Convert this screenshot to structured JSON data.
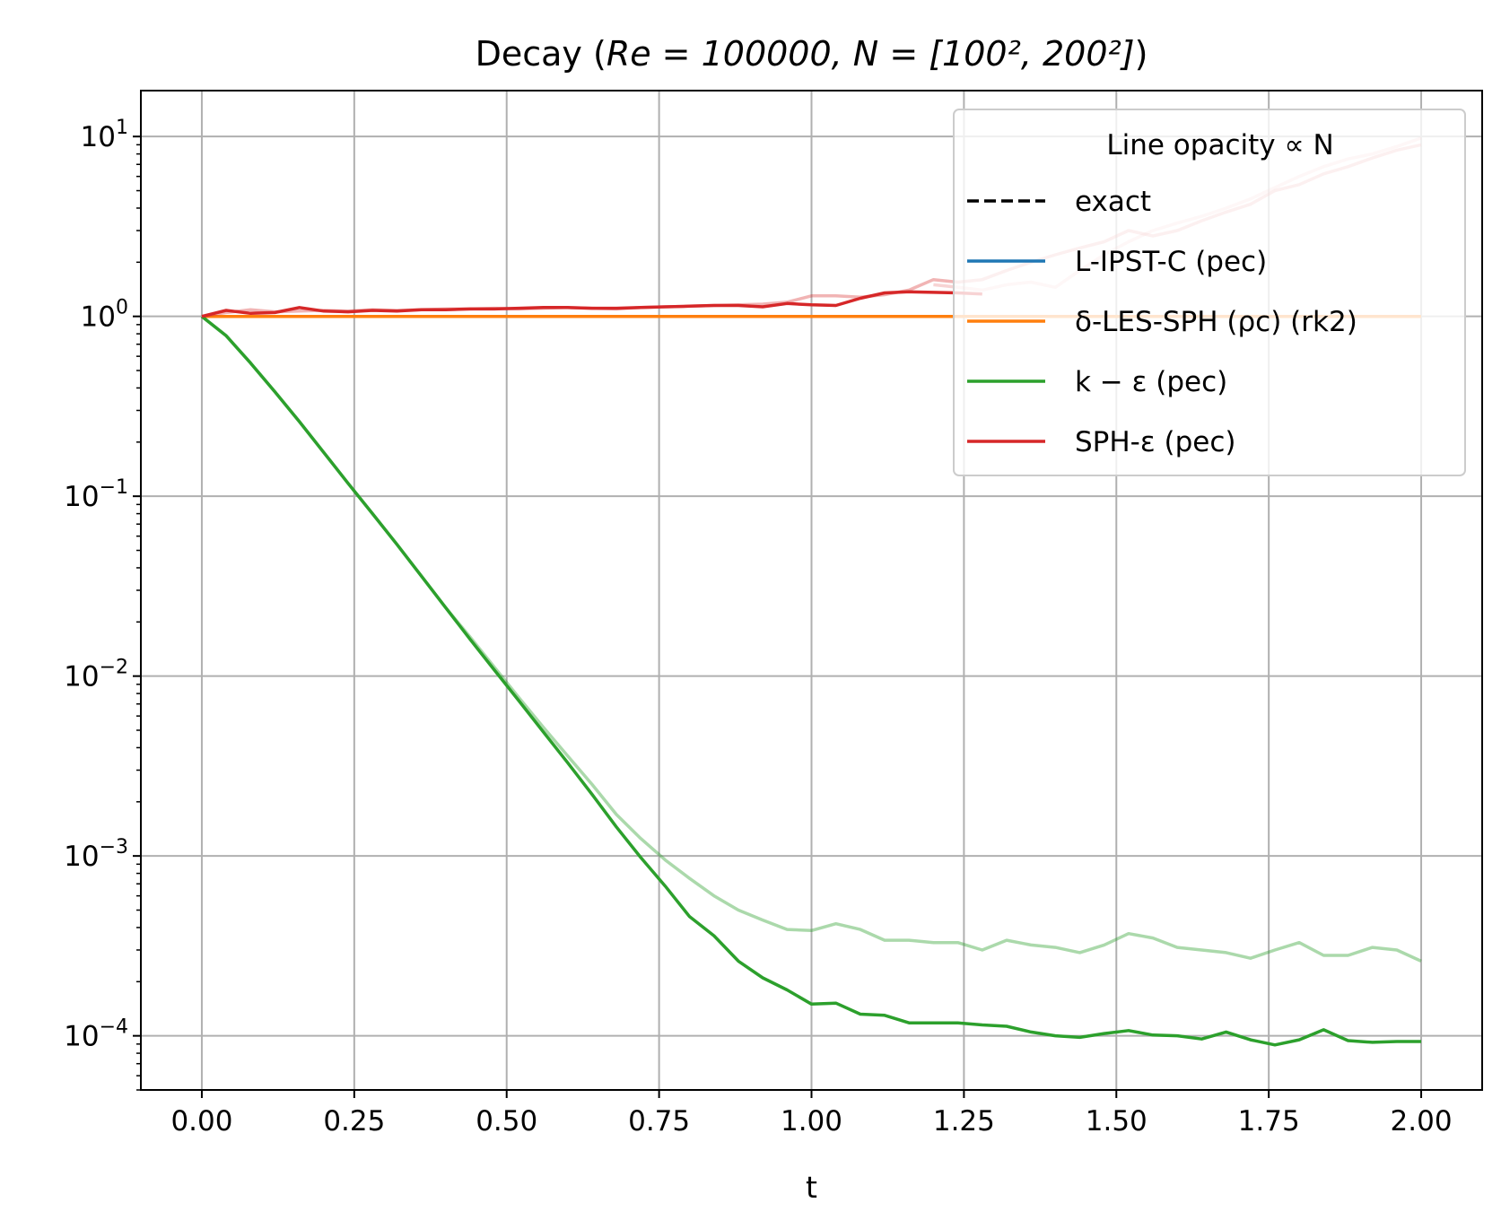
{
  "chart_data": {
    "type": "line",
    "title": {
      "main": "Decay",
      "params": "Re = 100000, N = [100², 200²]"
    },
    "xlabel": "t",
    "ylabel": "",
    "xlim": [
      -0.1,
      2.1
    ],
    "ylim": [
      5e-05,
      18
    ],
    "yscale": "log",
    "grid": true,
    "x_ticks": [
      0.0,
      0.25,
      0.5,
      0.75,
      1.0,
      1.25,
      1.5,
      1.75,
      2.0
    ],
    "x_tick_labels": [
      "0.00",
      "0.25",
      "0.50",
      "0.75",
      "1.00",
      "1.25",
      "1.50",
      "1.75",
      "2.00"
    ],
    "y_ticks": [
      {
        "value": 10,
        "base": "10",
        "exp": "1"
      },
      {
        "value": 1,
        "base": "10",
        "exp": "0"
      },
      {
        "value": 0.1,
        "base": "10",
        "exp": "−1"
      },
      {
        "value": 0.01,
        "base": "10",
        "exp": "−2"
      },
      {
        "value": 0.001,
        "base": "10",
        "exp": "−3"
      },
      {
        "value": 0.0001,
        "base": "10",
        "exp": "−4"
      }
    ],
    "legend": {
      "location": "upper right",
      "title": "Line opacity ∝ N",
      "entries": [
        {
          "label": "exact",
          "color": "#000000",
          "dash": true
        },
        {
          "label": "L-IPST-C (pec)",
          "color": "#1f77b4",
          "dash": false
        },
        {
          "label": "δ-LES-SPH (ρc) (rk2)",
          "color": "#ff7f0e",
          "dash": false
        },
        {
          "label": "k − ε (pec)",
          "color": "#2ca02c",
          "dash": false
        },
        {
          "label": "SPH-ε (pec)",
          "color": "#d62728",
          "dash": false
        }
      ]
    },
    "series": [
      {
        "name": "exact",
        "color": "#000000",
        "dash": true,
        "opacity": 1.0,
        "x": [
          0.0,
          2.0
        ],
        "y": [
          1.0,
          1.0
        ]
      },
      {
        "name": "L-IPST-C (pec)",
        "color": "#1f77b4",
        "opacity": 1.0,
        "x": [
          0.0,
          0.5,
          1.0,
          1.5,
          2.0
        ],
        "y": [
          1.0,
          1.0,
          0.999,
          0.999,
          0.998
        ]
      },
      {
        "name": "δ-LES-SPH (ρc) (rk2)",
        "color": "#ff7f0e",
        "opacity": 0.5,
        "resolution": "100²",
        "x": [
          0.0,
          0.5,
          1.0,
          1.5,
          2.0
        ],
        "y": [
          1.0,
          1.0,
          1.0,
          1.0,
          1.0
        ]
      },
      {
        "name": "δ-LES-SPH (ρc) (rk2)",
        "color": "#ff7f0e",
        "opacity": 1.0,
        "resolution": "200²",
        "x": [
          0.0,
          0.5,
          1.0,
          1.5,
          2.0
        ],
        "y": [
          1.0,
          1.0,
          1.0,
          1.0,
          1.0
        ]
      },
      {
        "name": "k − ε (pec)",
        "color": "#2ca02c",
        "opacity": 0.4,
        "resolution": "100²",
        "x": [
          0.0,
          0.04,
          0.08,
          0.12,
          0.16,
          0.2,
          0.24,
          0.28,
          0.32,
          0.36,
          0.4,
          0.44,
          0.48,
          0.52,
          0.56,
          0.6,
          0.64,
          0.68,
          0.72,
          0.76,
          0.8,
          0.84,
          0.88,
          0.92,
          0.96,
          1.0,
          1.04,
          1.08,
          1.12,
          1.16,
          1.2,
          1.24,
          1.28,
          1.32,
          1.36,
          1.4,
          1.44,
          1.48,
          1.52,
          1.56,
          1.6,
          1.64,
          1.68,
          1.72,
          1.76,
          1.8,
          1.84,
          1.88,
          1.92,
          1.96,
          2.0
        ],
        "y": [
          1.0,
          0.78,
          0.55,
          0.38,
          0.26,
          0.175,
          0.118,
          0.08,
          0.054,
          0.036,
          0.024,
          0.0165,
          0.0112,
          0.0076,
          0.0052,
          0.0036,
          0.0025,
          0.0017,
          0.00125,
          0.00095,
          0.00075,
          0.0006,
          0.0005,
          0.00044,
          0.00039,
          0.000385,
          0.00042,
          0.00039,
          0.00034,
          0.00034,
          0.00033,
          0.00033,
          0.0003,
          0.00034,
          0.00032,
          0.00031,
          0.00029,
          0.00032,
          0.00037,
          0.00035,
          0.00031,
          0.0003,
          0.00029,
          0.00027,
          0.0003,
          0.00033,
          0.00028,
          0.00028,
          0.00031,
          0.0003,
          0.00026
        ]
      },
      {
        "name": "k − ε (pec)",
        "color": "#2ca02c",
        "opacity": 1.0,
        "resolution": "200²",
        "x": [
          0.0,
          0.04,
          0.08,
          0.12,
          0.16,
          0.2,
          0.24,
          0.28,
          0.32,
          0.36,
          0.4,
          0.44,
          0.48,
          0.52,
          0.56,
          0.6,
          0.64,
          0.68,
          0.72,
          0.76,
          0.8,
          0.84,
          0.88,
          0.92,
          0.96,
          1.0,
          1.04,
          1.08,
          1.12,
          1.16,
          1.2,
          1.24,
          1.28,
          1.32,
          1.36,
          1.4,
          1.44,
          1.48,
          1.52,
          1.56,
          1.6,
          1.64,
          1.68,
          1.72,
          1.76,
          1.8,
          1.84,
          1.88,
          1.92,
          1.96,
          2.0
        ],
        "y": [
          1.0,
          0.78,
          0.55,
          0.38,
          0.26,
          0.175,
          0.118,
          0.08,
          0.054,
          0.036,
          0.024,
          0.016,
          0.0108,
          0.0073,
          0.0049,
          0.0033,
          0.0022,
          0.00145,
          0.00098,
          0.00068,
          0.00046,
          0.00036,
          0.00026,
          0.00021,
          0.00018,
          0.00015,
          0.000152,
          0.000132,
          0.00013,
          0.000118,
          0.000118,
          0.000118,
          0.000115,
          0.000113,
          0.000105,
          0.0001,
          9.8e-05,
          0.000103,
          0.000107,
          0.000101,
          0.0001,
          9.6e-05,
          0.000105,
          9.5e-05,
          8.9e-05,
          9.5e-05,
          0.000108,
          9.4e-05,
          9.2e-05,
          9.3e-05,
          9.3e-05
        ]
      },
      {
        "name": "SPH-ε (pec)",
        "color": "#d62728",
        "opacity": 0.35,
        "resolution": "100²",
        "x": [
          0.0,
          0.04,
          0.08,
          0.12,
          0.16,
          0.2,
          0.24,
          0.28,
          0.32,
          0.36,
          0.4,
          0.44,
          0.48,
          0.52,
          0.56,
          0.6,
          0.64,
          0.68,
          0.72,
          0.76,
          0.8,
          0.84,
          0.88,
          0.92,
          0.96,
          1.0,
          1.04,
          1.08,
          1.12,
          1.16,
          1.2,
          1.24,
          1.28,
          1.32,
          1.36,
          1.4,
          1.44,
          1.48,
          1.52,
          1.56,
          1.6,
          1.64,
          1.68,
          1.72,
          1.76,
          1.8,
          1.84,
          1.88,
          1.92,
          1.96,
          2.0
        ],
        "y": [
          1.0,
          1.05,
          1.09,
          1.06,
          1.07,
          1.08,
          1.07,
          1.09,
          1.08,
          1.09,
          1.1,
          1.1,
          1.11,
          1.1,
          1.11,
          1.12,
          1.11,
          1.1,
          1.12,
          1.13,
          1.14,
          1.15,
          1.16,
          1.17,
          1.2,
          1.3,
          1.3,
          1.28,
          1.32,
          1.4,
          1.6,
          1.55,
          1.6,
          1.8,
          2.0,
          2.2,
          2.4,
          2.6,
          3.0,
          2.8,
          3.0,
          3.4,
          3.8,
          4.2,
          5.0,
          5.4,
          6.2,
          6.8,
          7.6,
          8.4,
          9.0
        ]
      },
      {
        "name": "SPH-ε (pec)",
        "color": "#d62728",
        "opacity": 0.2,
        "resolution": "150²",
        "x": [
          1.2,
          1.24,
          1.28,
          1.32,
          1.36,
          1.4,
          1.44,
          1.48,
          1.52,
          1.56,
          1.6,
          1.64,
          1.68,
          1.72,
          1.76,
          1.8,
          1.84,
          1.88,
          1.92,
          1.96,
          2.0
        ],
        "y": [
          1.5,
          1.45,
          1.4,
          1.5,
          1.55,
          1.45,
          1.8,
          2.2,
          2.6,
          3.0,
          3.3,
          3.6,
          4.0,
          4.5,
          5.2,
          6.0,
          6.8,
          7.5,
          8.0,
          8.8,
          9.8
        ]
      },
      {
        "name": "SPH-ε (pec)",
        "color": "#d62728",
        "opacity": 1.0,
        "resolution": "200²",
        "x": [
          0.0,
          0.04,
          0.08,
          0.12,
          0.16,
          0.2,
          0.24,
          0.28,
          0.32,
          0.36,
          0.4,
          0.44,
          0.48,
          0.52,
          0.56,
          0.6,
          0.64,
          0.68,
          0.72,
          0.76,
          0.8,
          0.84,
          0.88,
          0.92,
          0.96,
          1.0,
          1.04,
          1.08,
          1.12,
          1.16,
          1.2,
          1.24,
          1.28
        ],
        "y": [
          1.0,
          1.08,
          1.04,
          1.05,
          1.12,
          1.07,
          1.06,
          1.08,
          1.07,
          1.09,
          1.09,
          1.1,
          1.1,
          1.11,
          1.12,
          1.12,
          1.11,
          1.11,
          1.12,
          1.13,
          1.14,
          1.15,
          1.15,
          1.13,
          1.18,
          1.16,
          1.15,
          1.26,
          1.35,
          1.37,
          1.36,
          1.35,
          1.33
        ]
      }
    ]
  }
}
